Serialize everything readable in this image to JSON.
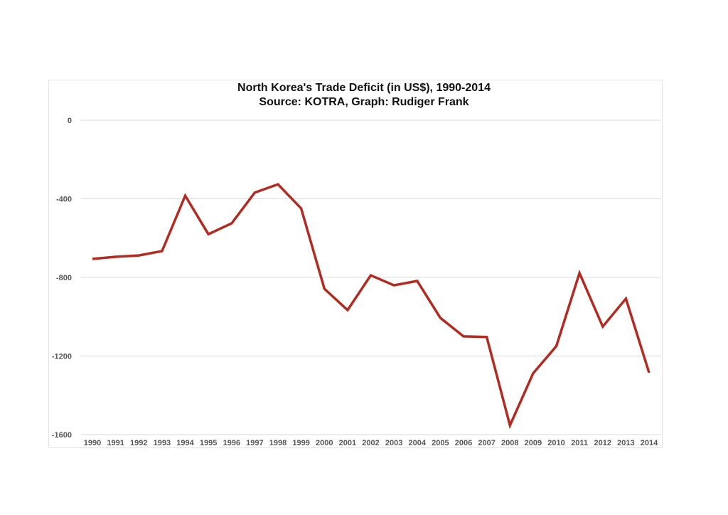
{
  "chart_data": {
    "type": "line",
    "title": "North Korea's Trade Deficit (in US$), 1990-2014",
    "subtitle": "Source: KOTRA, Graph: Rudiger Frank",
    "xlabel": "",
    "ylabel": "",
    "ylim": [
      -1600,
      0
    ],
    "yticks": [
      0,
      -400,
      -800,
      -1200,
      -1600
    ],
    "grid": true,
    "legend": null,
    "categories": [
      "1990",
      "1991",
      "1992",
      "1993",
      "1994",
      "1995",
      "1996",
      "1997",
      "1998",
      "1999",
      "2000",
      "2001",
      "2002",
      "2003",
      "2004",
      "2005",
      "2006",
      "2007",
      "2008",
      "2009",
      "2010",
      "2011",
      "2012",
      "2013",
      "2014"
    ],
    "series": [
      {
        "name": "Trade Deficit",
        "color": "#B32A20",
        "values": [
          -706,
          -695,
          -688,
          -666,
          -384,
          -580,
          -525,
          -368,
          -326,
          -449,
          -858,
          -966,
          -789,
          -840,
          -818,
          -1006,
          -1100,
          -1103,
          -1553,
          -1288,
          -1150,
          -778,
          -1050,
          -908,
          -1285
        ]
      }
    ]
  },
  "title": {
    "line1": "North Korea's Trade Deficit (in US$), 1990-2014",
    "line2": "Source: KOTRA, Graph: Rudiger Frank"
  }
}
